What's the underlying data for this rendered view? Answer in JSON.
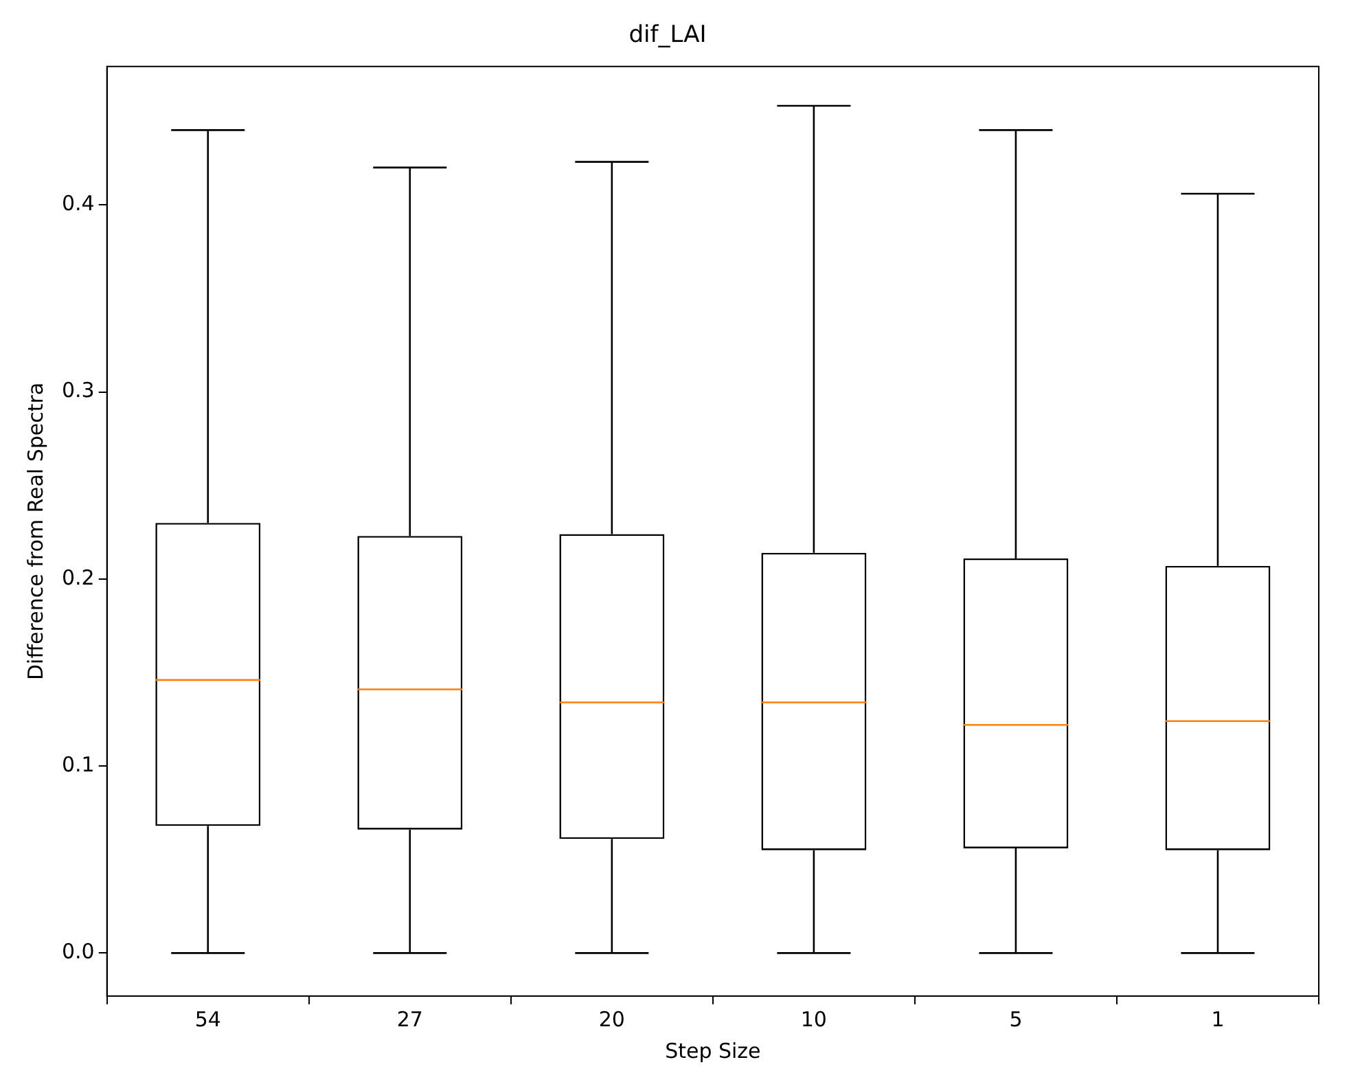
{
  "chart_data": {
    "type": "box",
    "title": "dif_LAI",
    "xlabel": "Step Size",
    "ylabel": "Difference from Real Spectra",
    "categories": [
      "54",
      "27",
      "20",
      "10",
      "5",
      "1"
    ],
    "boxes": [
      {
        "low": 0,
        "q1": 0.068,
        "median": 0.146,
        "q3": 0.23,
        "high": 0.44
      },
      {
        "low": 0,
        "q1": 0.066,
        "median": 0.141,
        "q3": 0.223,
        "high": 0.42
      },
      {
        "low": 0,
        "q1": 0.061,
        "median": 0.134,
        "q3": 0.224,
        "high": 0.423
      },
      {
        "low": 0,
        "q1": 0.055,
        "median": 0.134,
        "q3": 0.214,
        "high": 0.453
      },
      {
        "low": 0,
        "q1": 0.056,
        "median": 0.122,
        "q3": 0.211,
        "high": 0.44
      },
      {
        "low": 0,
        "q1": 0.055,
        "median": 0.124,
        "q3": 0.207,
        "high": 0.406
      }
    ],
    "ylim": [
      -0.023,
      0.474
    ],
    "yticks": [
      {
        "value": 0,
        "label": "0.0"
      },
      {
        "value": 0.1,
        "label": "0.1"
      },
      {
        "value": 0.2,
        "label": "0.2"
      },
      {
        "value": 0.3,
        "label": "0.3"
      },
      {
        "value": 0.4,
        "label": "0.4"
      }
    ],
    "grid": false,
    "legend": false
  }
}
